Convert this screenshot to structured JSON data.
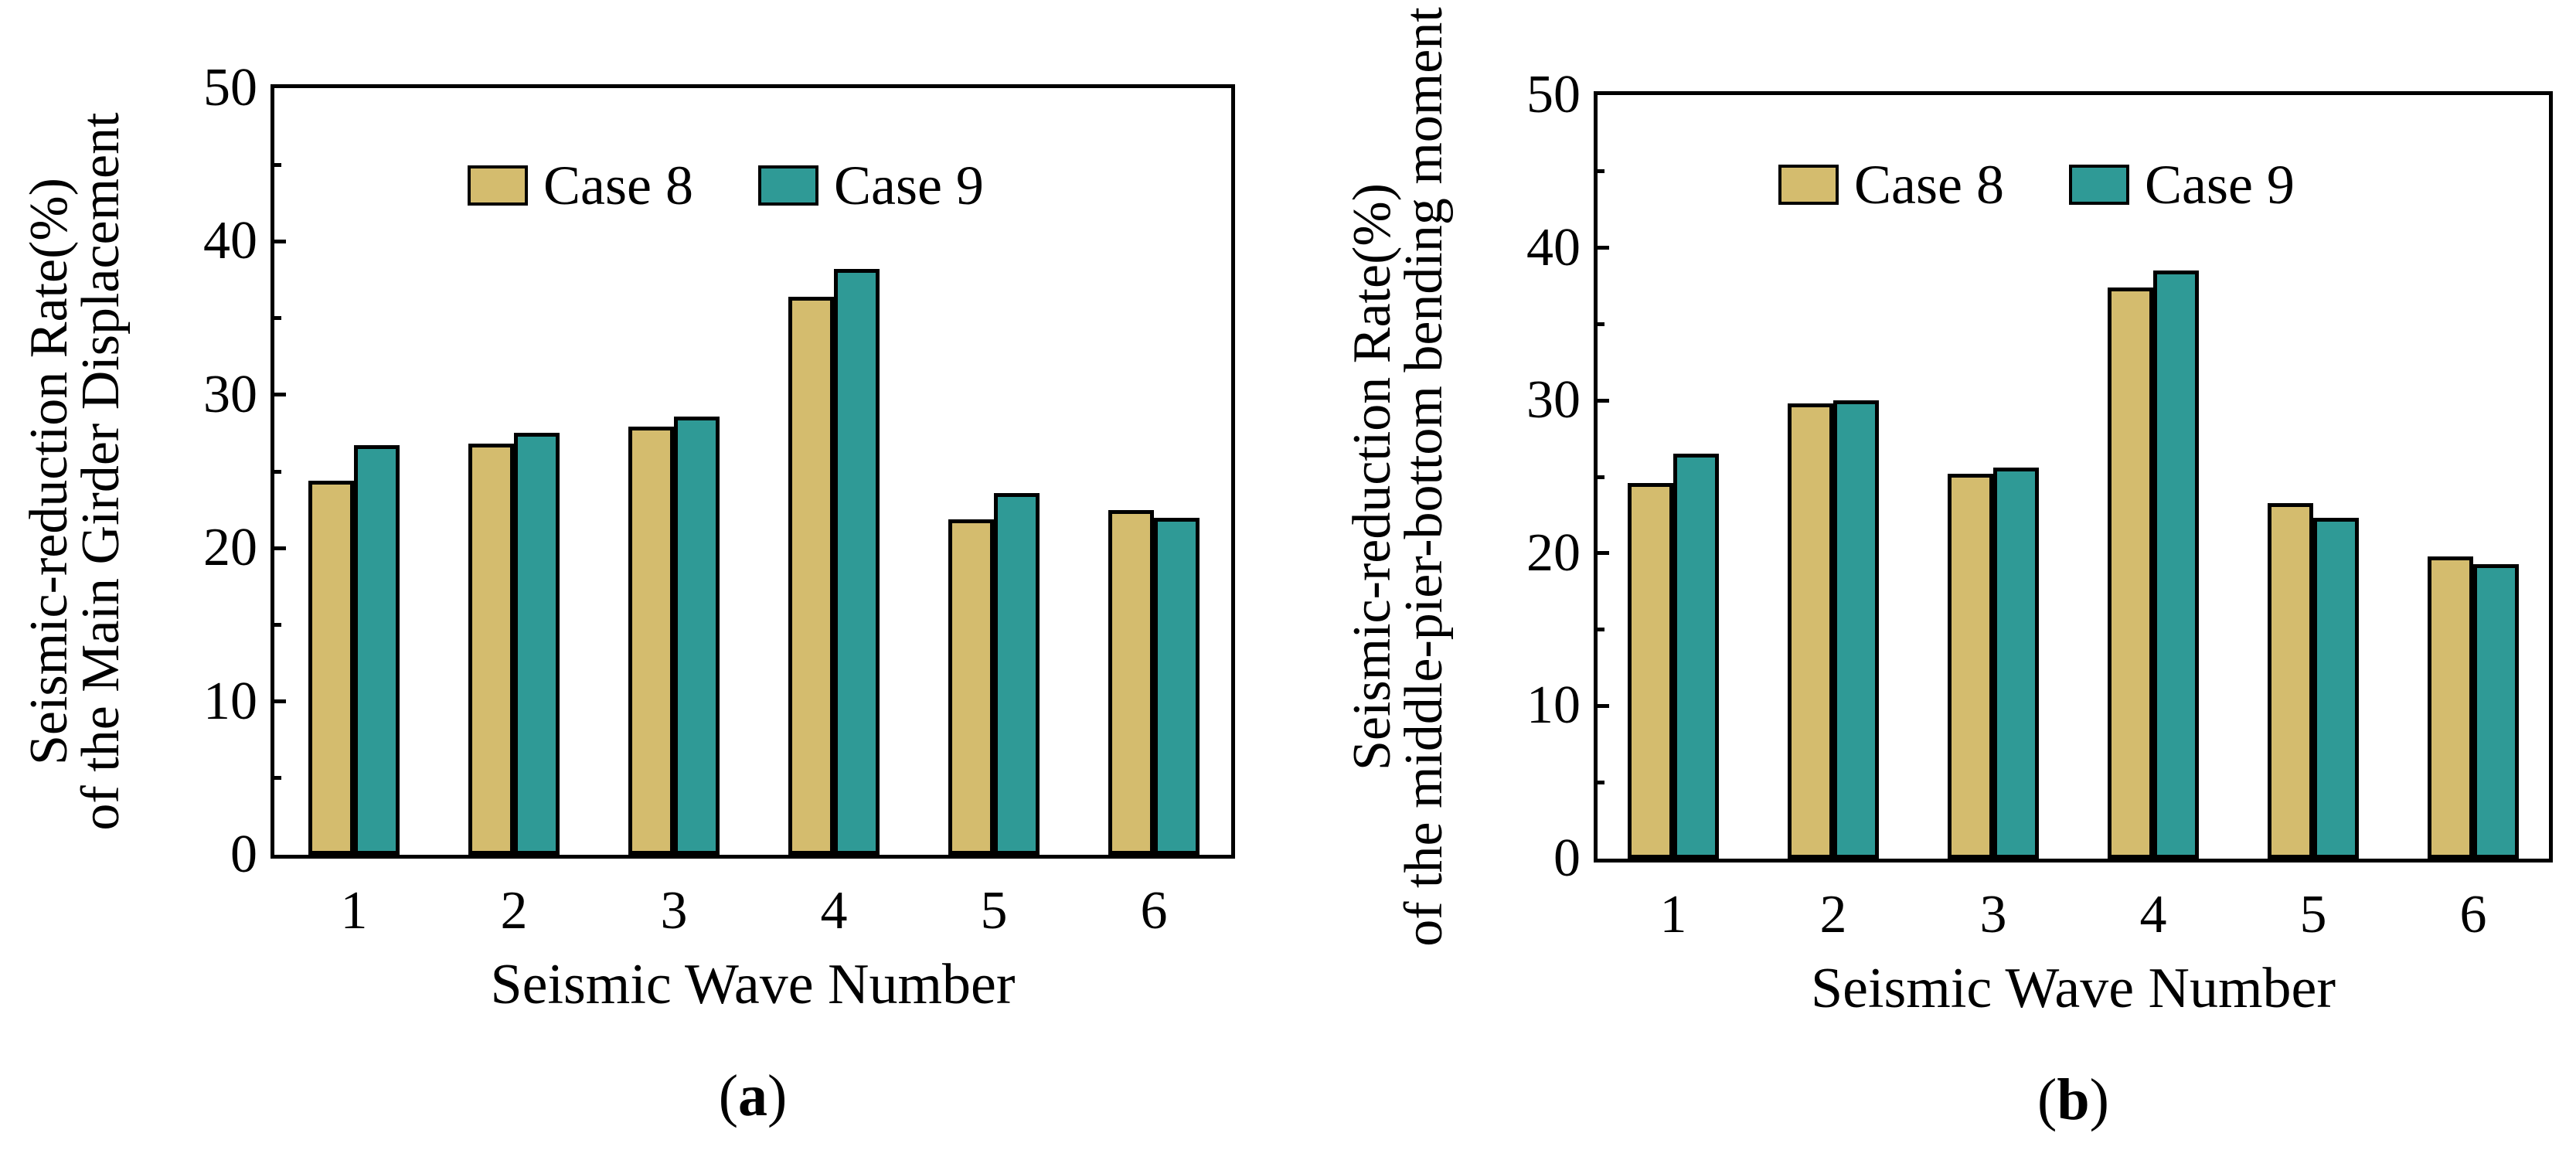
{
  "figure": {
    "background": "#FFFFFF",
    "description_visible_text_only": true
  },
  "colors": {
    "case8_fill": "#D4BC6E",
    "case9_fill": "#2F9A96",
    "axis": "#000000",
    "text": "#000000",
    "background": "#FFFFFF"
  },
  "chart_data": [
    {
      "type": "bar",
      "panel_label_open": "(",
      "panel_label_letter": "a",
      "panel_label_close": ")",
      "categories": [
        "1",
        "2",
        "3",
        "4",
        "5",
        "6"
      ],
      "series": [
        {
          "name": "Case 8",
          "color": "#D4BC6E",
          "values": [
            24.4,
            26.8,
            27.9,
            36.4,
            21.9,
            22.5
          ]
        },
        {
          "name": "Case 9",
          "color": "#2F9A96",
          "values": [
            26.7,
            27.5,
            28.6,
            38.2,
            23.6,
            22.0
          ]
        }
      ],
      "xlabel": "Seismic Wave Number",
      "ylabel_line1": "Seismic-reduction Rate(%)",
      "ylabel_line2": "of the Main Girder Displacement",
      "ylim": [
        0,
        50
      ],
      "yticks": [
        "0",
        "10",
        "20",
        "30",
        "40",
        "50"
      ],
      "ytick_values": [
        0,
        10,
        20,
        30,
        40,
        50
      ],
      "minor_tick_values": [
        5,
        15,
        25,
        35,
        45
      ],
      "grid": false,
      "legend_position": "top-inside"
    },
    {
      "type": "bar",
      "panel_label_open": "(",
      "panel_label_letter": "b",
      "panel_label_close": ")",
      "categories": [
        "1",
        "2",
        "3",
        "4",
        "5",
        "6"
      ],
      "series": [
        {
          "name": "Case 8",
          "color": "#D4BC6E",
          "values": [
            24.6,
            29.8,
            25.2,
            37.4,
            23.3,
            19.8
          ]
        },
        {
          "name": "Case 9",
          "color": "#2F9A96",
          "values": [
            26.5,
            30.0,
            25.6,
            38.5,
            22.3,
            19.3
          ]
        }
      ],
      "xlabel": "Seismic Wave Number",
      "ylabel_line1": "Seismic-reduction Rate(%)",
      "ylabel_line2": "of the middle-pier-bottom bending moment",
      "ylim": [
        0,
        50
      ],
      "yticks": [
        "0",
        "10",
        "20",
        "30",
        "40",
        "50"
      ],
      "ytick_values": [
        0,
        10,
        20,
        30,
        40,
        50
      ],
      "minor_tick_values": [
        5,
        15,
        25,
        35,
        45
      ],
      "grid": false,
      "legend_position": "top-inside"
    }
  ]
}
